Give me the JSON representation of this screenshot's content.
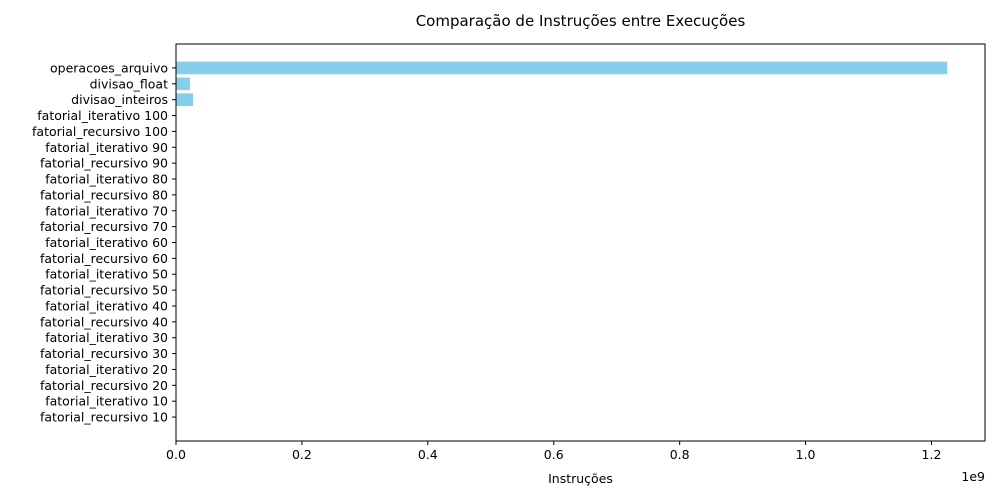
{
  "chart_data": {
    "type": "bar",
    "orientation": "horizontal",
    "title": "Comparação de Instruções entre Execuções",
    "xlabel": "Instruções",
    "ylabel": "",
    "x_scale_label": "1e9",
    "xlim": [
      0,
      1285000000.0
    ],
    "x_ticks": [
      0,
      200000000,
      400000000,
      600000000,
      800000000,
      1000000000,
      1200000000
    ],
    "x_tick_labels": [
      "0.0",
      "0.2",
      "0.4",
      "0.6",
      "0.8",
      "1.0",
      "1.2"
    ],
    "grid": false,
    "bar_color": "#87ceeb",
    "categories": [
      "fatorial_recursivo 10",
      "fatorial_iterativo 10",
      "fatorial_recursivo 20",
      "fatorial_iterativo 20",
      "fatorial_recursivo 30",
      "fatorial_iterativo 30",
      "fatorial_recursivo 40",
      "fatorial_iterativo 40",
      "fatorial_recursivo 50",
      "fatorial_iterativo 50",
      "fatorial_recursivo 60",
      "fatorial_iterativo 60",
      "fatorial_recursivo 70",
      "fatorial_iterativo 70",
      "fatorial_recursivo 80",
      "fatorial_iterativo 80",
      "fatorial_recursivo 90",
      "fatorial_iterativo 90",
      "fatorial_recursivo 100",
      "fatorial_iterativo 100",
      "divisao_inteiros",
      "divisao_float",
      "operacoes_arquivo"
    ],
    "values": [
      200000,
      150000,
      200000,
      150000,
      200000,
      150000,
      200000,
      150000,
      200000,
      150000,
      200000,
      150000,
      200000,
      150000,
      200000,
      150000,
      200000,
      150000,
      200000,
      150000,
      27000000,
      22000000,
      1225000000
    ]
  }
}
